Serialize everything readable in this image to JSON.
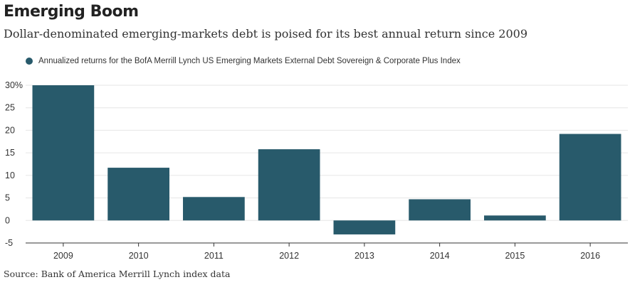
{
  "header": {
    "title": "Emerging Boom",
    "subtitle": "Dollar-denominated emerging-markets debt is poised for its best annual return since 2009"
  },
  "footer": {
    "source": "Source: Bank of America Merrill Lynch index data"
  },
  "colors": {
    "bar": "#285a6b",
    "grid": "#e6e6e6",
    "axis": "#333333"
  },
  "chart_data": {
    "type": "bar",
    "title": "Emerging Boom",
    "subtitle": "Dollar-denominated emerging-markets debt is poised for its best annual return since 2009",
    "xlabel": "",
    "ylabel": "",
    "legend": {
      "position": "top-left",
      "entries": [
        "Annualized returns for the BofA Merrill Lynch US Emerging Markets External Debt Sovereign & Corporate Plus Index"
      ]
    },
    "categories": [
      "2009",
      "2010",
      "2011",
      "2012",
      "2013",
      "2014",
      "2015",
      "2016"
    ],
    "series": [
      {
        "name": "Annualized returns for the BofA Merrill Lynch US Emerging Markets External Debt Sovereign & Corporate Plus Index",
        "values": [
          30.0,
          11.7,
          5.2,
          15.8,
          -3.1,
          4.7,
          1.1,
          19.2
        ]
      }
    ],
    "ylim": [
      -5,
      30
    ],
    "yticks": [
      30,
      25,
      20,
      15,
      10,
      5,
      0,
      -5
    ],
    "ytick_labels": [
      "30%",
      "25",
      "20",
      "15",
      "10",
      "5",
      "0",
      "-5"
    ],
    "grid": true
  }
}
